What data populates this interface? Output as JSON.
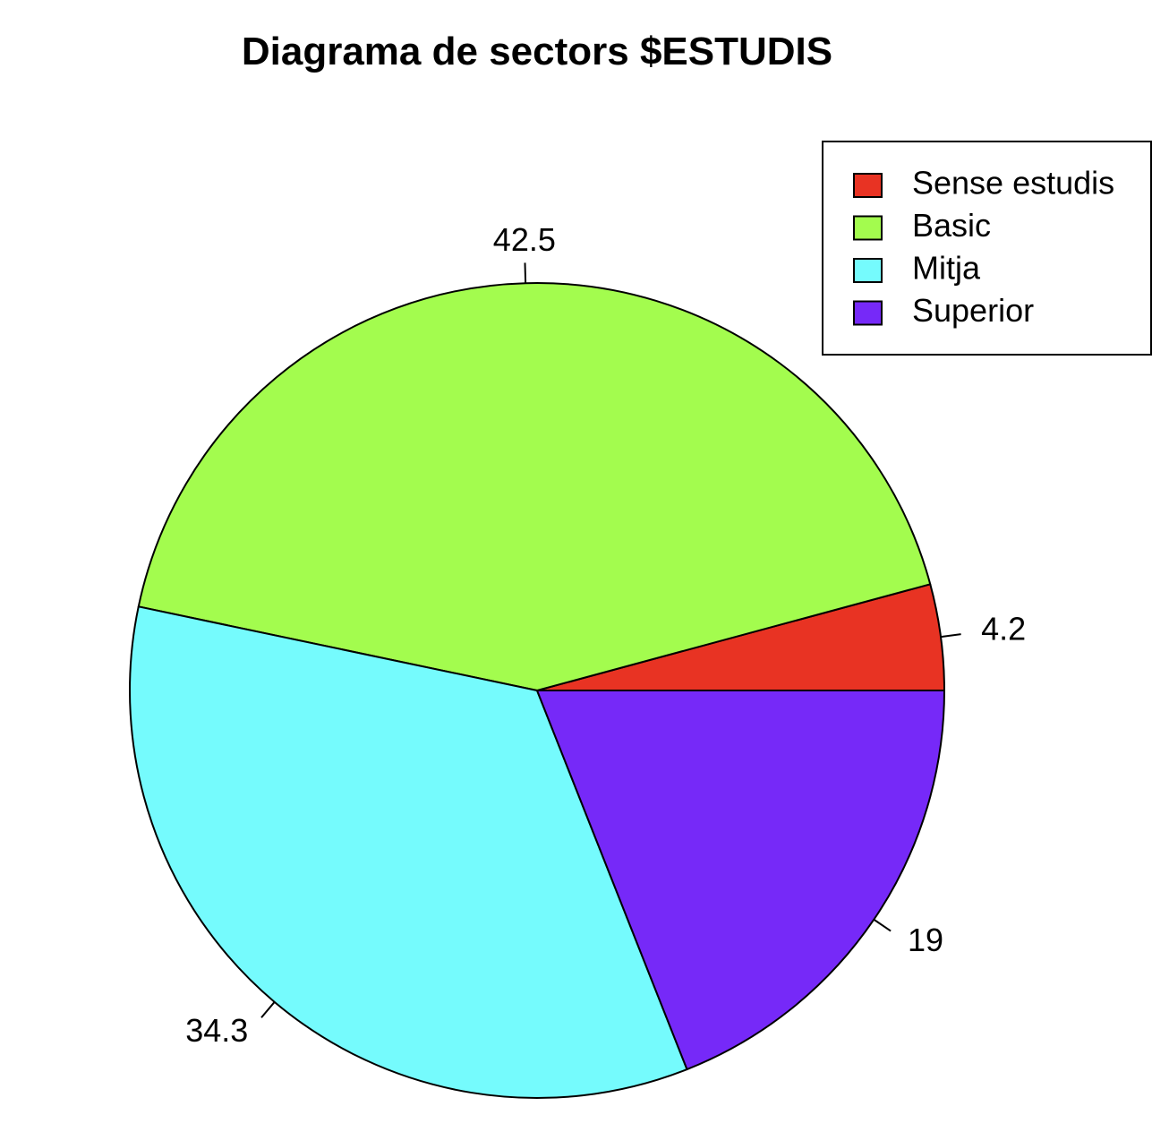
{
  "chart_data": {
    "type": "pie",
    "title": "Diagrama de sectors $ESTUDIS",
    "categories": [
      "Sense estudis",
      "Basic",
      "Mitja",
      "Superior"
    ],
    "values": [
      4.2,
      42.5,
      34.3,
      19
    ],
    "labels": [
      "4.2",
      "42.5",
      "34.3",
      "19"
    ],
    "colors": [
      "#E83323",
      "#A3FC4E",
      "#75FBFD",
      "#7629F8"
    ],
    "start": "right (3 o'clock)",
    "direction": "counterclockwise",
    "legend": {
      "position": "top-right",
      "entries": [
        "Sense estudis",
        "Basic",
        "Mitja",
        "Superior"
      ]
    }
  }
}
